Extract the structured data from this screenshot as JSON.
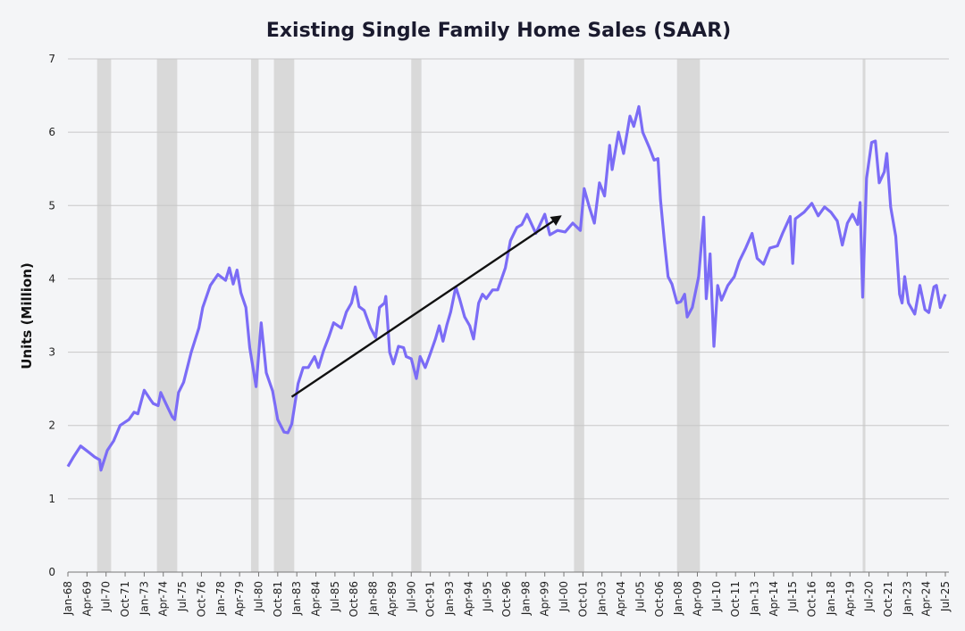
{
  "chart_data": {
    "type": "line",
    "title": "Existing Single Family Home Sales (SAAR)",
    "xlabel": "",
    "ylabel": "Units (Million)",
    "ylim": [
      0,
      7
    ],
    "yticks": [
      0,
      1,
      2,
      3,
      4,
      5,
      6,
      7
    ],
    "xlim": [
      "1968-01",
      "2025-07"
    ],
    "xtick_labels": [
      "Jan-68",
      "Apr-69",
      "Jul-70",
      "Oct-71",
      "Jan-73",
      "Apr-74",
      "Jul-75",
      "Oct-76",
      "Jan-78",
      "Apr-79",
      "Jul-80",
      "Oct-81",
      "Jan-83",
      "Apr-84",
      "Jul-85",
      "Oct-86",
      "Jan-88",
      "Apr-89",
      "Jul-90",
      "Oct-91",
      "Jan-93",
      "Apr-94",
      "Jul-95",
      "Oct-96",
      "Jan-98",
      "Apr-99",
      "Jul-00",
      "Oct-01",
      "Jan-03",
      "Apr-04",
      "Jul-05",
      "Oct-06",
      "Jan-08",
      "Apr-09",
      "Jul-10",
      "Oct-11",
      "Jan-13",
      "Apr-14",
      "Jul-15",
      "Oct-16",
      "Jan-18",
      "Apr-19",
      "Jul-20",
      "Oct-21",
      "Jan-23",
      "Apr-24",
      "Jul-25"
    ],
    "grid": "horizontal",
    "line_color": "#7b6cf6",
    "recession_color": "#d9d9d9",
    "recessions": [
      [
        "1969-12",
        "1970-11"
      ],
      [
        "1973-11",
        "1975-03"
      ],
      [
        "1980-01",
        "1980-07"
      ],
      [
        "1981-07",
        "1982-11"
      ],
      [
        "1990-07",
        "1991-03"
      ],
      [
        "2001-03",
        "2001-11"
      ],
      [
        "2007-12",
        "2009-06"
      ],
      [
        "2020-02",
        "2020-04"
      ]
    ],
    "trend_arrow": {
      "from": [
        "1982-09",
        2.39
      ],
      "to": [
        "2000-04",
        4.85
      ],
      "color": "#111111"
    },
    "series": [
      {
        "x": [
          "1968-01",
          "1968-05",
          "1968-11",
          "1969-05",
          "1969-10",
          "1970-02",
          "1970-03",
          "1970-08",
          "1971-01",
          "1971-06",
          "1972-01",
          "1972-05",
          "1972-08",
          "1973-01",
          "1973-06",
          "1973-08",
          "1973-12",
          "1974-02",
          "1974-06",
          "1974-11",
          "1975-01",
          "1975-04",
          "1975-08",
          "1976-02",
          "1976-08",
          "1976-11",
          "1977-05",
          "1977-11",
          "1978-05",
          "1978-08",
          "1978-11",
          "1979-02",
          "1979-05",
          "1979-09",
          "1979-12",
          "1980-05",
          "1980-09",
          "1981-01",
          "1981-06",
          "1981-10",
          "1982-03",
          "1982-06",
          "1982-09",
          "1983-02",
          "1983-06",
          "1983-10",
          "1984-03",
          "1984-06",
          "1984-10",
          "1985-02",
          "1985-06",
          "1985-12",
          "1986-04",
          "1986-08",
          "1986-11",
          "1987-02",
          "1987-06",
          "1987-11",
          "1988-03",
          "1988-06",
          "1988-10",
          "1988-11",
          "1989-02",
          "1989-05",
          "1989-09",
          "1990-01",
          "1990-03",
          "1990-07",
          "1990-11",
          "1991-02",
          "1991-06",
          "1991-10",
          "1992-02",
          "1992-05",
          "1992-08",
          "1992-11",
          "1993-02",
          "1993-06",
          "1993-09",
          "1994-01",
          "1994-05",
          "1994-08",
          "1994-12",
          "1995-03",
          "1995-06",
          "1995-11",
          "1996-03",
          "1996-09",
          "1997-01",
          "1997-06",
          "1997-10",
          "1998-02",
          "1998-09",
          "1999-04",
          "1999-08",
          "2000-02",
          "2000-08",
          "2001-02",
          "2001-08",
          "2001-11",
          "2002-03",
          "2002-07",
          "2002-11",
          "2003-03",
          "2003-07",
          "2003-09",
          "2004-02",
          "2004-06",
          "2004-11",
          "2005-02",
          "2005-06",
          "2005-09",
          "2006-02",
          "2006-06",
          "2006-09",
          "2006-11",
          "2007-02",
          "2007-05",
          "2007-08",
          "2007-12",
          "2008-03",
          "2008-06",
          "2008-08",
          "2008-12",
          "2009-05",
          "2009-09",
          "2009-11",
          "2010-02",
          "2010-05",
          "2010-08",
          "2010-11",
          "2011-04",
          "2011-09",
          "2012-01",
          "2012-06",
          "2012-11",
          "2013-03",
          "2013-08",
          "2014-01",
          "2014-07",
          "2014-11",
          "2015-05",
          "2015-07",
          "2015-09",
          "2016-04",
          "2016-10",
          "2017-03",
          "2017-08",
          "2018-01",
          "2018-06",
          "2018-10",
          "2019-02",
          "2019-06",
          "2019-10",
          "2019-12",
          "2020-02",
          "2020-05",
          "2020-09",
          "2020-12",
          "2021-03",
          "2021-07",
          "2021-09",
          "2021-12",
          "2022-04",
          "2022-07",
          "2022-09",
          "2022-11",
          "2023-02",
          "2023-07",
          "2023-11",
          "2024-03",
          "2024-06",
          "2024-10",
          "2024-12",
          "2025-03",
          "2025-07"
        ],
        "y": [
          1.44,
          1.56,
          1.72,
          1.64,
          1.57,
          1.53,
          1.39,
          1.66,
          1.79,
          2.0,
          2.08,
          2.18,
          2.16,
          2.48,
          2.35,
          2.3,
          2.27,
          2.45,
          2.3,
          2.12,
          2.08,
          2.45,
          2.59,
          3.0,
          3.33,
          3.61,
          3.91,
          4.06,
          3.98,
          4.15,
          3.93,
          4.12,
          3.81,
          3.61,
          3.06,
          2.53,
          3.4,
          2.72,
          2.47,
          2.08,
          1.91,
          1.9,
          2.02,
          2.57,
          2.79,
          2.79,
          2.94,
          2.79,
          3.02,
          3.2,
          3.4,
          3.33,
          3.55,
          3.67,
          3.89,
          3.62,
          3.57,
          3.33,
          3.2,
          3.61,
          3.67,
          3.76,
          3.0,
          2.84,
          3.08,
          3.06,
          2.94,
          2.91,
          2.64,
          2.94,
          2.79,
          2.98,
          3.18,
          3.36,
          3.15,
          3.37,
          3.55,
          3.89,
          3.73,
          3.48,
          3.36,
          3.18,
          3.67,
          3.79,
          3.73,
          3.85,
          3.85,
          4.15,
          4.52,
          4.7,
          4.74,
          4.88,
          4.62,
          4.88,
          4.6,
          4.66,
          4.64,
          4.76,
          4.66,
          5.23,
          4.98,
          4.76,
          5.31,
          5.13,
          5.82,
          5.49,
          6.0,
          5.71,
          6.22,
          6.08,
          6.35,
          6.0,
          5.8,
          5.62,
          5.64,
          5.08,
          4.52,
          4.03,
          3.93,
          3.67,
          3.69,
          3.79,
          3.48,
          3.61,
          4.03,
          4.84,
          3.73,
          4.34,
          3.08,
          3.91,
          3.71,
          3.91,
          4.03,
          4.24,
          4.42,
          4.62,
          4.28,
          4.2,
          4.42,
          4.45,
          4.62,
          4.85,
          4.21,
          4.82,
          4.91,
          5.03,
          4.86,
          4.98,
          4.91,
          4.79,
          4.46,
          4.76,
          4.88,
          4.74,
          5.04,
          3.75,
          5.37,
          5.86,
          5.88,
          5.31,
          5.46,
          5.71,
          4.98,
          4.58,
          3.79,
          3.67,
          4.03,
          3.67,
          3.52,
          3.91,
          3.58,
          3.54,
          3.89,
          3.91,
          3.61,
          3.79
        ]
      }
    ]
  }
}
